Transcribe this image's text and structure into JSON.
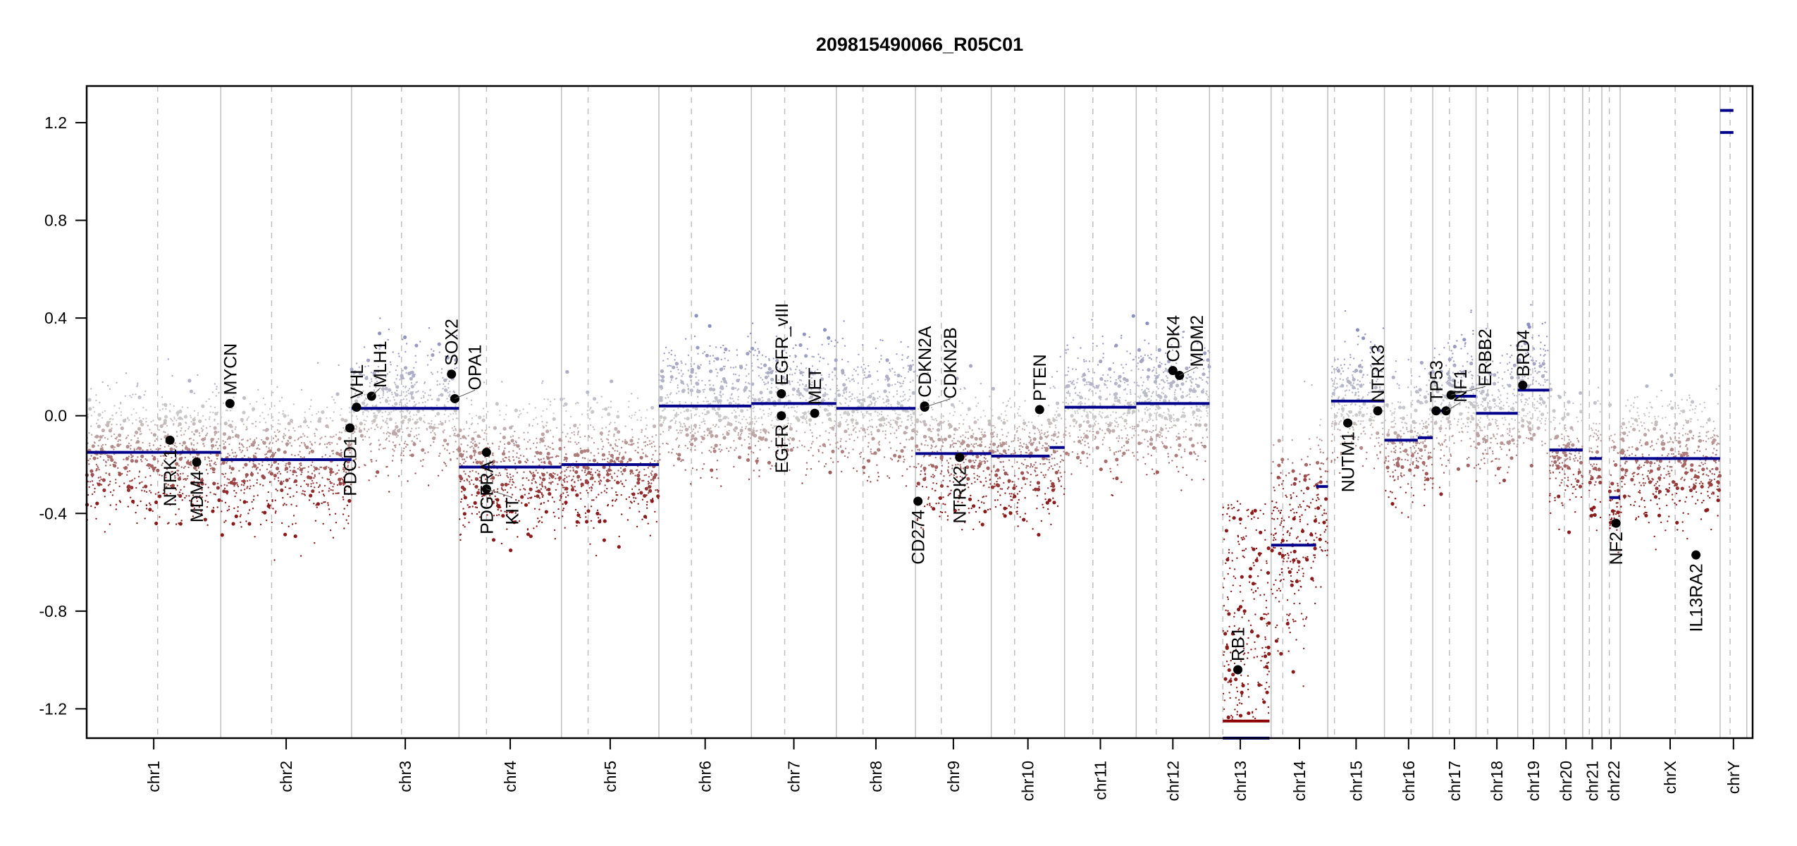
{
  "chart_data": {
    "type": "scatter",
    "title": "209815490066_R05C01",
    "xlabel": "",
    "ylabel": "",
    "ylim": [
      -1.32,
      1.35
    ],
    "yticks": [
      "1.2",
      "0.8",
      "0.4",
      "0.0",
      "-0.4",
      "-0.8",
      "-1.2"
    ],
    "ytick_values": [
      1.2,
      0.8,
      0.4,
      0.0,
      -0.4,
      -0.8,
      -1.2
    ],
    "grid": "vertical chromosome boundaries (solid) and centromeres (dashed)",
    "colors": {
      "gain": "#8c8fc2",
      "neutral": "#cccccc",
      "loss": "#8b1a1a",
      "segment": "#00008b",
      "segment_loss_deep": "#8b0000",
      "gene_marker": "#000000",
      "boundary": "#bfbfbf",
      "axis": "#000000"
    },
    "chromosomes": [
      {
        "name": "chr1",
        "start": 0.0,
        "end": 0.0805,
        "centro": 0.0426,
        "segments": [
          [
            0.0,
            0.0805,
            -0.15
          ]
        ]
      },
      {
        "name": "chr2",
        "start": 0.0805,
        "end": 0.159,
        "centro": 0.111,
        "segments": [
          [
            0.0805,
            0.159,
            -0.18
          ]
        ]
      },
      {
        "name": "chr3",
        "start": 0.159,
        "end": 0.2235,
        "centro": 0.189,
        "segments": [
          [
            0.159,
            0.2235,
            0.03
          ]
        ]
      },
      {
        "name": "chr4",
        "start": 0.2235,
        "end": 0.285,
        "centro": 0.24,
        "segments": [
          [
            0.2235,
            0.285,
            -0.21
          ]
        ]
      },
      {
        "name": "chr5",
        "start": 0.285,
        "end": 0.3435,
        "centro": 0.301,
        "segments": [
          [
            0.285,
            0.3435,
            -0.2
          ]
        ]
      },
      {
        "name": "chr6",
        "start": 0.3435,
        "end": 0.399,
        "centro": 0.363,
        "segments": [
          [
            0.3435,
            0.399,
            0.04
          ]
        ]
      },
      {
        "name": "chr7",
        "start": 0.399,
        "end": 0.45,
        "centro": 0.419,
        "segments": [
          [
            0.399,
            0.45,
            0.05
          ]
        ]
      },
      {
        "name": "chr8",
        "start": 0.45,
        "end": 0.4975,
        "centro": 0.466,
        "segments": [
          [
            0.45,
            0.4975,
            0.03
          ]
        ]
      },
      {
        "name": "chr9",
        "start": 0.4975,
        "end": 0.543,
        "centro": 0.513,
        "segments": [
          [
            0.4975,
            0.543,
            -0.155
          ]
        ]
      },
      {
        "name": "chr10",
        "start": 0.543,
        "end": 0.587,
        "centro": 0.557,
        "segments": [
          [
            0.543,
            0.578,
            -0.165
          ],
          [
            0.578,
            0.587,
            -0.13
          ]
        ]
      },
      {
        "name": "chr11",
        "start": 0.587,
        "end": 0.63,
        "centro": 0.604,
        "segments": [
          [
            0.587,
            0.63,
            0.035
          ]
        ]
      },
      {
        "name": "chr12",
        "start": 0.63,
        "end": 0.674,
        "centro": 0.642,
        "segments": [
          [
            0.63,
            0.674,
            0.05
          ]
        ]
      },
      {
        "name": "chr13",
        "start": 0.674,
        "end": 0.711,
        "centro": 0.682,
        "segments": [
          [
            0.682,
            0.71,
            -1.25
          ],
          [
            0.682,
            0.71,
            -1.32
          ]
        ]
      },
      {
        "name": "chr14",
        "start": 0.711,
        "end": 0.745,
        "centro": 0.718,
        "segments": [
          [
            0.711,
            0.738,
            -0.53
          ],
          [
            0.738,
            0.745,
            -0.29
          ]
        ]
      },
      {
        "name": "chr15",
        "start": 0.745,
        "end": 0.779,
        "centro": 0.749,
        "segments": [
          [
            0.747,
            0.779,
            0.06
          ]
        ]
      },
      {
        "name": "chr16",
        "start": 0.779,
        "end": 0.808,
        "centro": 0.795,
        "segments": [
          [
            0.779,
            0.799,
            -0.1
          ],
          [
            0.799,
            0.808,
            -0.09
          ]
        ]
      },
      {
        "name": "chr17",
        "start": 0.808,
        "end": 0.834,
        "centro": 0.818,
        "segments": [
          [
            0.808,
            0.818,
            0.02
          ],
          [
            0.818,
            0.834,
            0.08
          ]
        ]
      },
      {
        "name": "chr18",
        "start": 0.834,
        "end": 0.859,
        "centro": 0.841,
        "segments": [
          [
            0.834,
            0.859,
            0.01
          ]
        ]
      },
      {
        "name": "chr19",
        "start": 0.859,
        "end": 0.878,
        "centro": 0.868,
        "segments": [
          [
            0.859,
            0.878,
            0.105
          ]
        ]
      },
      {
        "name": "chr20",
        "start": 0.878,
        "end": 0.898,
        "centro": 0.887,
        "segments": [
          [
            0.878,
            0.898,
            -0.14
          ]
        ]
      },
      {
        "name": "chr21",
        "start": 0.898,
        "end": 0.9095,
        "centro": 0.902,
        "segments": [
          [
            0.902,
            0.9095,
            -0.175
          ]
        ]
      },
      {
        "name": "chr22",
        "start": 0.9095,
        "end": 0.9205,
        "centro": 0.914,
        "segments": [
          [
            0.914,
            0.9205,
            -0.335
          ]
        ]
      },
      {
        "name": "chrX",
        "start": 0.9205,
        "end": 0.9805,
        "centro": 0.9535,
        "segments": [
          [
            0.9205,
            0.9805,
            -0.175
          ]
        ]
      },
      {
        "name": "chrY",
        "start": 0.9805,
        "end": 0.9965,
        "centro": 0.9865,
        "segments": [
          [
            0.9805,
            0.9885,
            1.25
          ],
          [
            0.9805,
            0.9885,
            1.16
          ]
        ]
      }
    ],
    "genes": [
      {
        "name": "NTRK1",
        "chr": "chr1",
        "pos": 0.05,
        "value": -0.1,
        "label_side": "below"
      },
      {
        "name": "MDM4",
        "chr": "chr1",
        "pos": 0.066,
        "value": -0.19,
        "label_side": "below"
      },
      {
        "name": "MYCN",
        "chr": "chr2",
        "pos": 0.086,
        "value": 0.05,
        "label_side": "above"
      },
      {
        "name": "PDCD1",
        "chr": "chr2",
        "pos": 0.158,
        "value": -0.05,
        "label_side": "below"
      },
      {
        "name": "VHL",
        "chr": "chr3",
        "pos": 0.162,
        "value": 0.035,
        "label_side": "above"
      },
      {
        "name": "MLH1",
        "chr": "chr3",
        "pos": 0.171,
        "value": 0.08,
        "label_side": "above"
      },
      {
        "name": "SOX2",
        "chr": "chr3",
        "pos": 0.219,
        "value": 0.17,
        "label_side": "above"
      },
      {
        "name": "OPA1",
        "chr": "chr3",
        "pos": 0.221,
        "value": 0.07,
        "label_side": "above"
      },
      {
        "name": "PDGFRA",
        "chr": "chr4",
        "pos": 0.24,
        "value": -0.15,
        "label_side": "below"
      },
      {
        "name": "KIT",
        "chr": "chr4",
        "pos": 0.24,
        "value": -0.3,
        "label_side": "below"
      },
      {
        "name": "EGFR_vIII",
        "chr": "chr7",
        "pos": 0.417,
        "value": 0.09,
        "label_side": "above"
      },
      {
        "name": "EGFR",
        "chr": "chr7",
        "pos": 0.417,
        "value": 0.0,
        "label_side": "below"
      },
      {
        "name": "MET",
        "chr": "chr7",
        "pos": 0.437,
        "value": 0.01,
        "label_side": "above"
      },
      {
        "name": "CD274",
        "chr": "chr9",
        "pos": 0.499,
        "value": -0.35,
        "label_side": "below"
      },
      {
        "name": "CDKN2A",
        "chr": "chr9",
        "pos": 0.503,
        "value": 0.04,
        "label_side": "above"
      },
      {
        "name": "CDKN2B",
        "chr": "chr9",
        "pos": 0.503,
        "value": 0.035,
        "label_side": "above"
      },
      {
        "name": "NTRK2",
        "chr": "chr9",
        "pos": 0.524,
        "value": -0.17,
        "label_side": "below"
      },
      {
        "name": "PTEN",
        "chr": "chr10",
        "pos": 0.572,
        "value": 0.025,
        "label_side": "above"
      },
      {
        "name": "CDK4",
        "chr": "chr12",
        "pos": 0.652,
        "value": 0.185,
        "label_side": "above"
      },
      {
        "name": "MDM2",
        "chr": "chr12",
        "pos": 0.656,
        "value": 0.165,
        "label_side": "above"
      },
      {
        "name": "RB1",
        "chr": "chr13",
        "pos": 0.691,
        "value": -1.04,
        "label_side": "above"
      },
      {
        "name": "NUTM1",
        "chr": "chr15",
        "pos": 0.757,
        "value": -0.03,
        "label_side": "below"
      },
      {
        "name": "NTRK3",
        "chr": "chr15",
        "pos": 0.775,
        "value": 0.02,
        "label_side": "above"
      },
      {
        "name": "TP53",
        "chr": "chr17",
        "pos": 0.81,
        "value": 0.02,
        "label_side": "above"
      },
      {
        "name": "NF1",
        "chr": "chr17",
        "pos": 0.816,
        "value": 0.02,
        "label_side": "above"
      },
      {
        "name": "ERBB2",
        "chr": "chr17",
        "pos": 0.819,
        "value": 0.085,
        "label_side": "above"
      },
      {
        "name": "BRD4",
        "chr": "chr19",
        "pos": 0.862,
        "value": 0.125,
        "label_side": "above"
      },
      {
        "name": "NF2",
        "chr": "chr22",
        "pos": 0.918,
        "value": -0.44,
        "label_side": "below"
      },
      {
        "name": "IL13RA2",
        "chr": "chrX",
        "pos": 0.966,
        "value": -0.57,
        "label_side": "below"
      }
    ]
  }
}
